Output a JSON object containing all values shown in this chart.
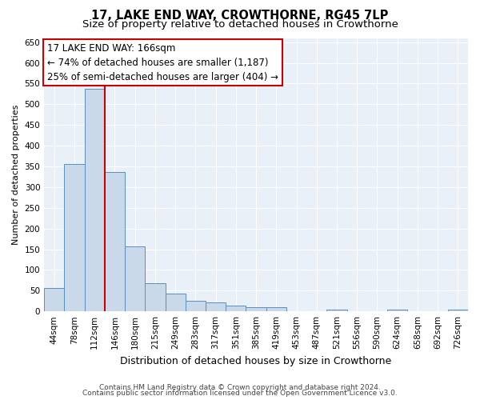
{
  "title": "17, LAKE END WAY, CROWTHORNE, RG45 7LP",
  "subtitle": "Size of property relative to detached houses in Crowthorne",
  "xlabel": "Distribution of detached houses by size in Crowthorne",
  "ylabel": "Number of detached properties",
  "bar_labels": [
    "44sqm",
    "78sqm",
    "112sqm",
    "146sqm",
    "180sqm",
    "215sqm",
    "249sqm",
    "283sqm",
    "317sqm",
    "351sqm",
    "385sqm",
    "419sqm",
    "453sqm",
    "487sqm",
    "521sqm",
    "556sqm",
    "590sqm",
    "624sqm",
    "658sqm",
    "692sqm",
    "726sqm"
  ],
  "bar_values": [
    57,
    355,
    538,
    337,
    157,
    68,
    42,
    25,
    21,
    13,
    10,
    10,
    1,
    1,
    4,
    1,
    1,
    4,
    0,
    0,
    4
  ],
  "bar_color": "#c9d9ea",
  "bar_edge_color": "#5a8fc4",
  "ylim": [
    0,
    660
  ],
  "yticks": [
    0,
    50,
    100,
    150,
    200,
    250,
    300,
    350,
    400,
    450,
    500,
    550,
    600,
    650
  ],
  "vline_x": 2.5,
  "vline_color": "#cc0000",
  "annotation_title": "17 LAKE END WAY: 166sqm",
  "annotation_line1": "← 74% of detached houses are smaller (1,187)",
  "annotation_line2": "25% of semi-detached houses are larger (404) →",
  "annotation_box_color": "#ffffff",
  "annotation_box_edge": "#cc0000",
  "footer1": "Contains HM Land Registry data © Crown copyright and database right 2024.",
  "footer2": "Contains public sector information licensed under the Open Government Licence v3.0.",
  "background_color": "#eaf0f8",
  "grid_color": "#ffffff",
  "title_fontsize": 10.5,
  "subtitle_fontsize": 9.5,
  "ylabel_fontsize": 8,
  "xlabel_fontsize": 9,
  "tick_fontsize": 7.5,
  "footer_fontsize": 6.5,
  "ann_fontsize": 8.5
}
